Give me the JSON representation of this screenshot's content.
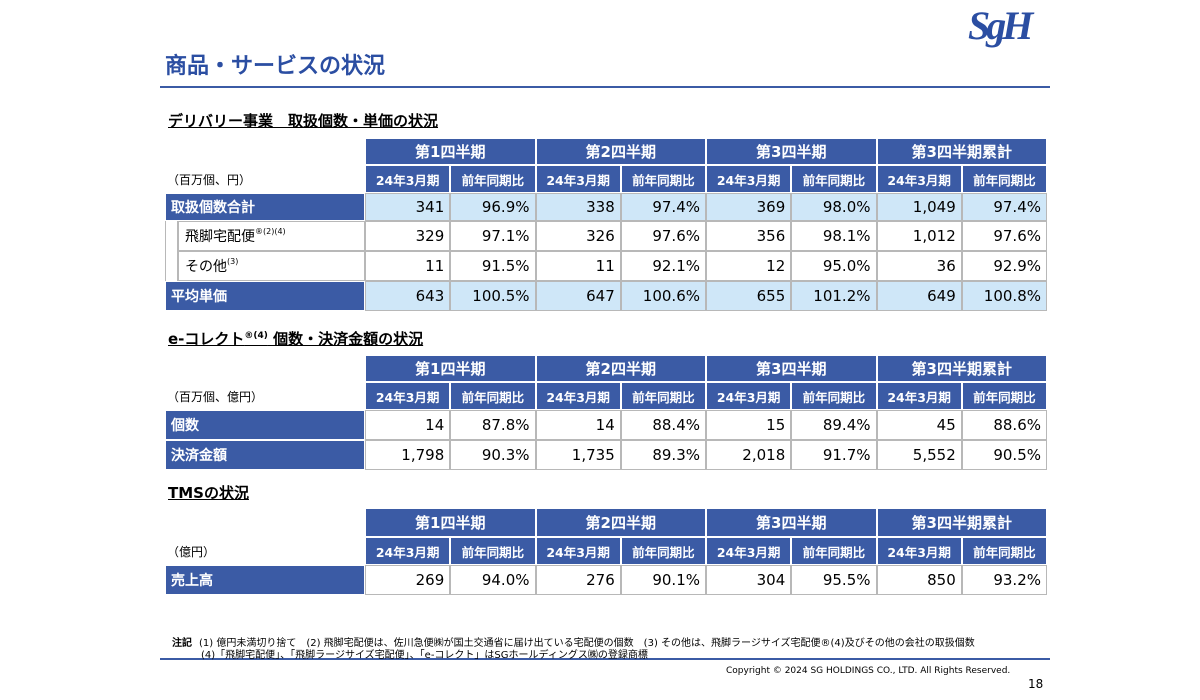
{
  "header": {
    "title": "商品・サービスの状況",
    "logo": "SgH"
  },
  "sections": [
    {
      "heading": "デリバリー事業　取扱個数・単価の状況",
      "unit": "（百万個、円）",
      "highlight": true,
      "periods": [
        {
          "name": "第1四半期",
          "columns": [
            "24年3月期",
            "前年同期比"
          ]
        },
        {
          "name": "第2四半期",
          "columns": [
            "24年3月期",
            "前年同期比"
          ]
        },
        {
          "name": "第3四半期",
          "columns": [
            "24年3月期",
            "前年同期比"
          ]
        },
        {
          "name": "第3四半期累計",
          "columns": [
            "24年3月期",
            "前年同期比"
          ]
        }
      ],
      "rows": [
        {
          "label": "取扱個数合計",
          "cells": [
            "341",
            "96.9%",
            "338",
            "97.4%",
            "369",
            "98.0%",
            "1,049",
            "97.4%"
          ]
        },
        {
          "label": "飛脚宅配便",
          "sup": "®(2)(4)",
          "indent": true,
          "cells": [
            "329",
            "97.1%",
            "326",
            "97.6%",
            "356",
            "98.1%",
            "1,012",
            "97.6%"
          ]
        },
        {
          "label": "その他",
          "sup": "(3)",
          "indent": true,
          "cells": [
            "11",
            "91.5%",
            "11",
            "92.1%",
            "12",
            "95.0%",
            "36",
            "92.9%"
          ]
        },
        {
          "label": "平均単価",
          "cells": [
            "643",
            "100.5%",
            "647",
            "100.6%",
            "655",
            "101.2%",
            "649",
            "100.8%"
          ]
        }
      ]
    },
    {
      "heading": "e-コレクト",
      "heading_sup": "®(4)",
      "heading_rest": " 個数・決済金額の状況",
      "unit": "（百万個、億円）",
      "highlight": false,
      "periods": [
        {
          "name": "第1四半期",
          "columns": [
            "24年3月期",
            "前年同期比"
          ]
        },
        {
          "name": "第2四半期",
          "columns": [
            "24年3月期",
            "前年同期比"
          ]
        },
        {
          "name": "第3四半期",
          "columns": [
            "24年3月期",
            "前年同期比"
          ]
        },
        {
          "name": "第3四半期累計",
          "columns": [
            "24年3月期",
            "前年同期比"
          ]
        }
      ],
      "rows": [
        {
          "label": "個数",
          "cells": [
            "14",
            "87.8%",
            "14",
            "88.4%",
            "15",
            "89.4%",
            "45",
            "88.6%"
          ]
        },
        {
          "label": "決済金額",
          "cells": [
            "1,798",
            "90.3%",
            "1,735",
            "89.3%",
            "2,018",
            "91.7%",
            "5,552",
            "90.5%"
          ]
        }
      ]
    },
    {
      "heading": "TMSの状況",
      "unit": "（億円）",
      "highlight": false,
      "periods": [
        {
          "name": "第1四半期",
          "columns": [
            "24年3月期",
            "前年同期比"
          ]
        },
        {
          "name": "第2四半期",
          "columns": [
            "24年3月期",
            "前年同期比"
          ]
        },
        {
          "name": "第3四半期",
          "columns": [
            "24年3月期",
            "前年同期比"
          ]
        },
        {
          "name": "第3四半期累計",
          "columns": [
            "24年3月期",
            "前年同期比"
          ]
        }
      ],
      "rows": [
        {
          "label": "売上高",
          "cells": [
            "269",
            "94.0%",
            "276",
            "90.1%",
            "304",
            "95.5%",
            "850",
            "93.2%"
          ]
        }
      ]
    }
  ],
  "notes": {
    "label": "注記",
    "lines": [
      "(1) 億円未満切り捨て　(2) 飛脚宅配便は、佐川急便㈱が国土交通省に届け出ている宅配便の個数　(3) その他は、飛脚ラージサイズ宅配便®(4)及びその他の会社の取扱個数",
      "(4)「飛脚宅配便」、「飛脚ラージサイズ宅配便」、「e-コレクト」はSGホールディングス㈱の登録商標"
    ]
  },
  "footer": {
    "copyright": "Copyright © 2024 SG HOLDINGS CO., LTD.  All Rights Reserved.",
    "page": "18"
  }
}
